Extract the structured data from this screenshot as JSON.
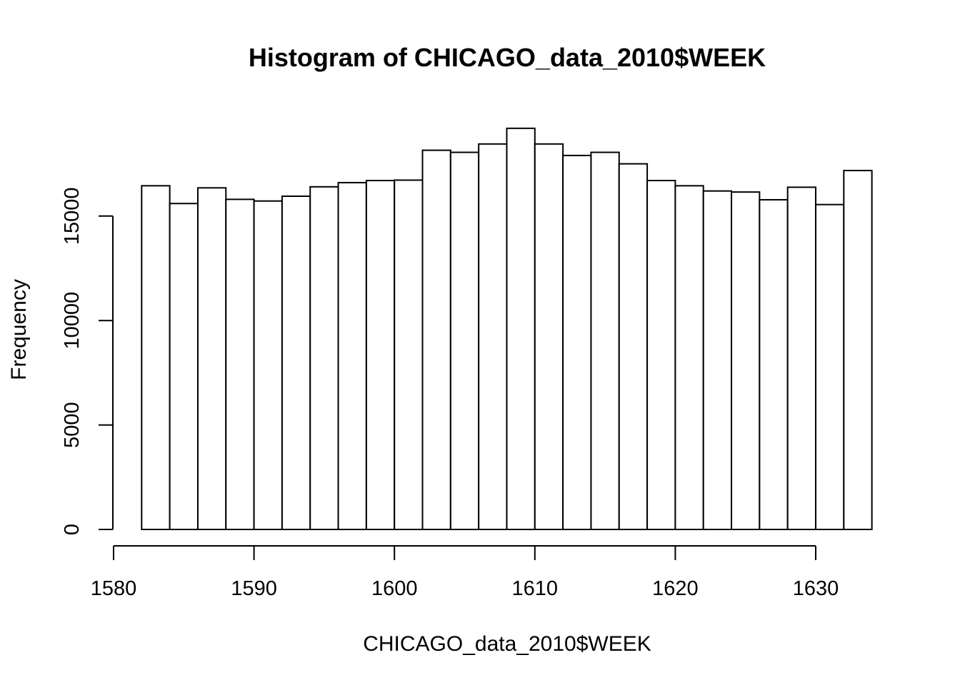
{
  "chart_data": {
    "type": "bar",
    "title": "Histogram of CHICAGO_data_2010$WEEK",
    "xlabel": "CHICAGO_data_2010$WEEK",
    "ylabel": "Frequency",
    "xlim": [
      1580,
      1634
    ],
    "ylim": [
      0,
      19200
    ],
    "x_ticks": [
      1580,
      1590,
      1600,
      1610,
      1620,
      1630
    ],
    "y_ticks": [
      0,
      5000,
      10000,
      15000
    ],
    "grid": false,
    "bins": [
      {
        "x0": 1582,
        "x1": 1584,
        "value": 16450
      },
      {
        "x0": 1584,
        "x1": 1586,
        "value": 15600
      },
      {
        "x0": 1586,
        "x1": 1588,
        "value": 16350
      },
      {
        "x0": 1588,
        "x1": 1590,
        "value": 15800
      },
      {
        "x0": 1590,
        "x1": 1592,
        "value": 15720
      },
      {
        "x0": 1592,
        "x1": 1594,
        "value": 15950
      },
      {
        "x0": 1594,
        "x1": 1596,
        "value": 16400
      },
      {
        "x0": 1596,
        "x1": 1598,
        "value": 16600
      },
      {
        "x0": 1598,
        "x1": 1600,
        "value": 16700
      },
      {
        "x0": 1600,
        "x1": 1602,
        "value": 16720
      },
      {
        "x0": 1602,
        "x1": 1604,
        "value": 18150
      },
      {
        "x0": 1604,
        "x1": 1606,
        "value": 18050
      },
      {
        "x0": 1606,
        "x1": 1608,
        "value": 18450
      },
      {
        "x0": 1608,
        "x1": 1610,
        "value": 19200
      },
      {
        "x0": 1610,
        "x1": 1612,
        "value": 18450
      },
      {
        "x0": 1612,
        "x1": 1614,
        "value": 17900
      },
      {
        "x0": 1614,
        "x1": 1616,
        "value": 18050
      },
      {
        "x0": 1616,
        "x1": 1618,
        "value": 17500
      },
      {
        "x0": 1618,
        "x1": 1620,
        "value": 16700
      },
      {
        "x0": 1620,
        "x1": 1622,
        "value": 16450
      },
      {
        "x0": 1622,
        "x1": 1624,
        "value": 16200
      },
      {
        "x0": 1624,
        "x1": 1626,
        "value": 16150
      },
      {
        "x0": 1626,
        "x1": 1628,
        "value": 15780
      },
      {
        "x0": 1628,
        "x1": 1630,
        "value": 16380
      },
      {
        "x0": 1630,
        "x1": 1632,
        "value": 15550
      },
      {
        "x0": 1632,
        "x1": 1634,
        "value": 17180
      }
    ]
  }
}
